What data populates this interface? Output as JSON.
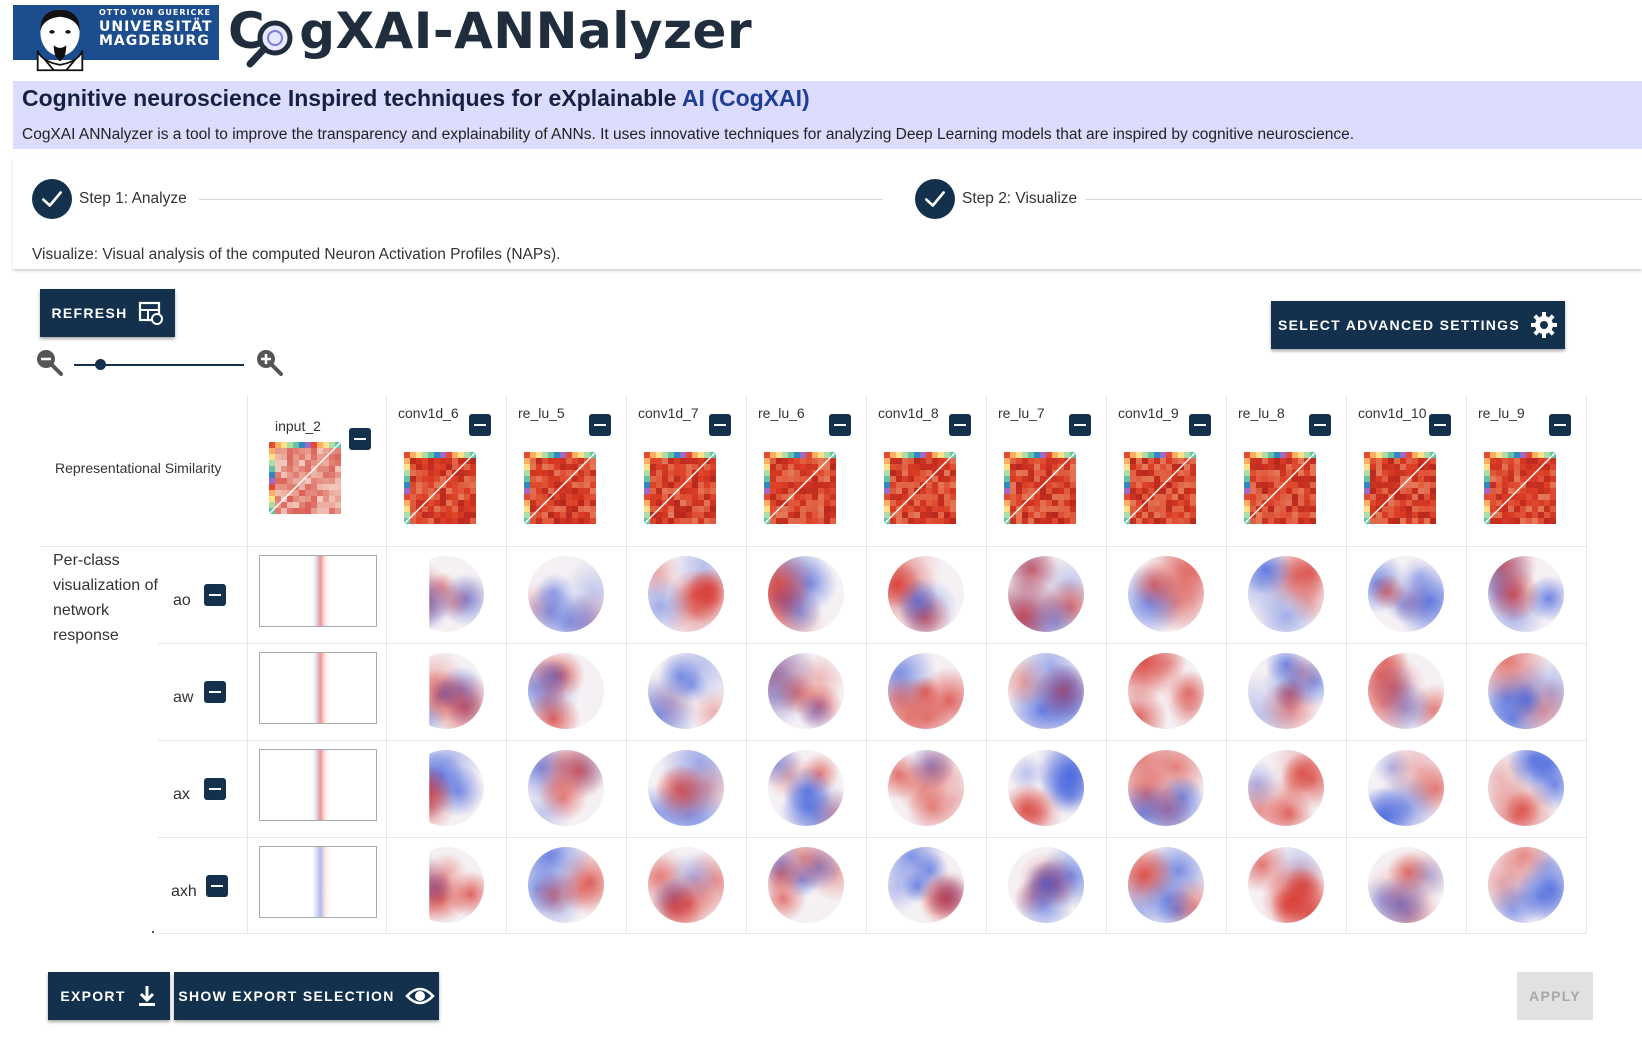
{
  "header": {
    "university": {
      "line1": "OTTO VON GUERICKE",
      "line2": "UNIVERSITÄT",
      "line3": "MAGDEBURG"
    },
    "app_logo_prefix": "C",
    "app_logo_suffix": "gXAI-ANNalyzer"
  },
  "banner": {
    "title_part1": "Cognitive neuroscience Inspired techniques for eXplainable ",
    "title_part2": "AI (CogXAI)",
    "subtitle": "CogXAI ANNalyzer is a tool to improve the transparency and explainability of ANNs. It uses innovative techniques for analyzing Deep Learning models that are inspired by cognitive neuroscience."
  },
  "stepper": {
    "step1": "Step 1: Analyze",
    "step2": "Step 2: Visualize",
    "description": "Visualize: Visual analysis of the computed Neuron Activation Profiles (NAPs)."
  },
  "toolbar": {
    "refresh_label": "REFRESH",
    "advanced_label": "SELECT ADVANCED SETTINGS",
    "zoom_level": 0.15
  },
  "grid": {
    "rs_label": "Representational Similarity",
    "pc_label": "Per-class visualization of network response",
    "layers": [
      "input_2",
      "conv1d_6",
      "re_lu_5",
      "conv1d_7",
      "re_lu_6",
      "conv1d_8",
      "re_lu_7",
      "conv1d_9",
      "re_lu_8",
      "conv1d_10",
      "re_lu_9"
    ],
    "classes": [
      "ao",
      "aw",
      "ax",
      "axh"
    ]
  },
  "footer": {
    "export_label": "EXPORT",
    "show_export_label": "SHOW EXPORT SELECTION",
    "apply_label": "APPLY"
  },
  "colors": {
    "primary": "#13314d",
    "banner_bg": "#dcdcff",
    "heat_red": "#d62f27",
    "heat_blue": "#3b5bdb"
  }
}
